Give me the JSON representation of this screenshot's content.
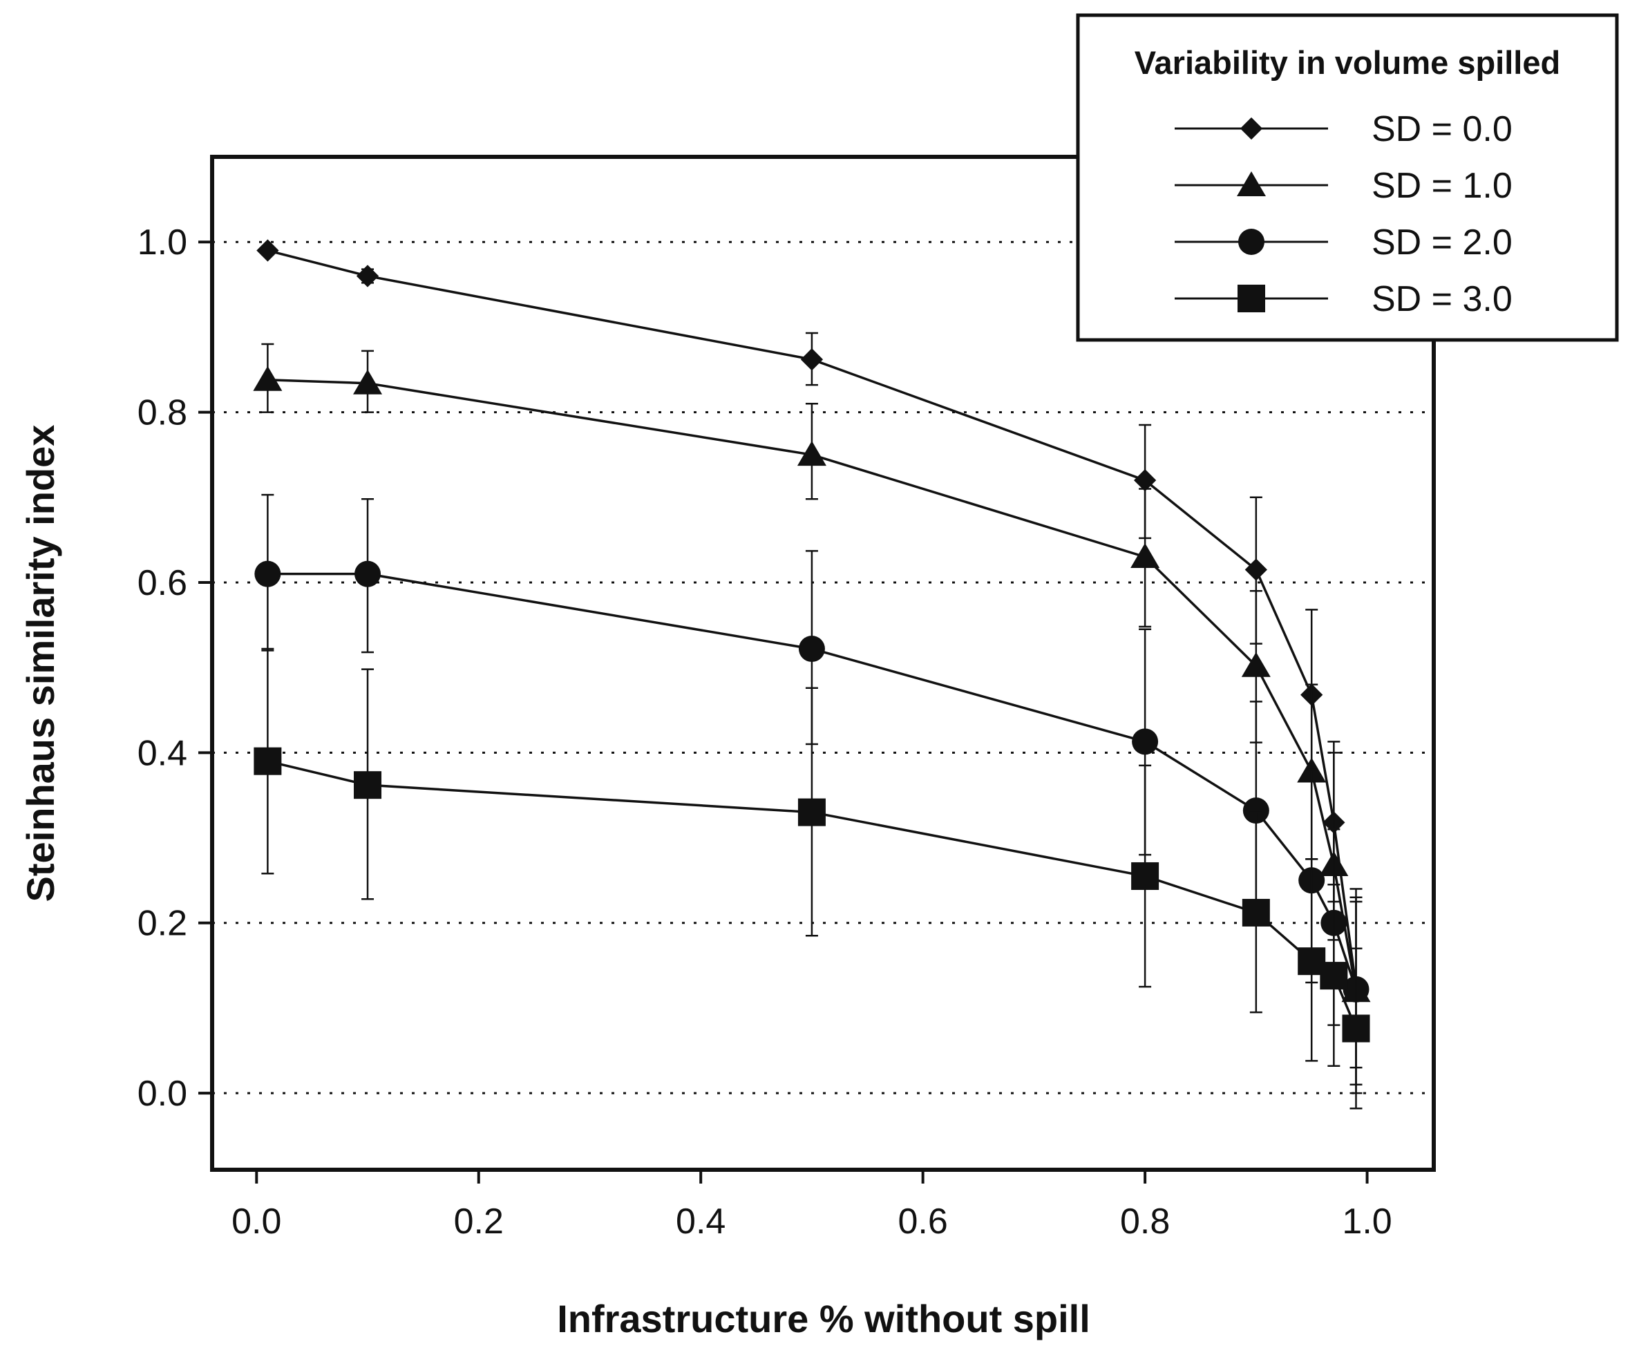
{
  "chart_data": {
    "type": "line",
    "title": "",
    "xlabel": "Infrastructure % without spill",
    "ylabel": "Steinhaus similarity index",
    "xlim": [
      -0.04,
      1.06
    ],
    "ylim": [
      -0.09,
      1.1
    ],
    "xticks": [
      "0.0",
      "0.2",
      "0.4",
      "0.6",
      "0.8",
      "1.0"
    ],
    "yticks": [
      "0.0",
      "0.2",
      "0.4",
      "0.6",
      "0.8",
      "1.0"
    ],
    "grid": "horizontal dotted",
    "legend": {
      "title": "Variability in volume spilled",
      "position": "top-right"
    },
    "x": [
      0.01,
      0.1,
      0.5,
      0.8,
      0.9,
      0.95,
      0.97,
      0.99
    ],
    "series": [
      {
        "name": "SD = 0.0",
        "marker": "diamond",
        "values": [
          0.99,
          0.96,
          0.862,
          0.72,
          0.615,
          0.468,
          0.318,
          0.125
        ],
        "lower": [
          0.985,
          0.952,
          0.832,
          0.652,
          0.528,
          0.37,
          0.225,
          0.03
        ],
        "upper": [
          0.995,
          0.968,
          0.893,
          0.785,
          0.7,
          0.568,
          0.413,
          0.225
        ]
      },
      {
        "name": "SD = 1.0",
        "marker": "triangle",
        "values": [
          0.838,
          0.834,
          0.75,
          0.63,
          0.502,
          0.378,
          0.268,
          0.12
        ],
        "lower": [
          0.8,
          0.8,
          0.698,
          0.548,
          0.412,
          0.275,
          0.18,
          0.01
        ],
        "upper": [
          0.88,
          0.872,
          0.81,
          0.71,
          0.59,
          0.48,
          0.4,
          0.23
        ]
      },
      {
        "name": "SD = 2.0",
        "marker": "circle",
        "values": [
          0.61,
          0.61,
          0.522,
          0.413,
          0.332,
          0.25,
          0.2,
          0.122
        ],
        "lower": [
          0.52,
          0.518,
          0.41,
          0.28,
          0.21,
          0.13,
          0.08,
          0.0
        ],
        "upper": [
          0.703,
          0.698,
          0.637,
          0.545,
          0.46,
          0.38,
          0.31,
          0.24
        ]
      },
      {
        "name": "SD = 3.0",
        "marker": "square",
        "values": [
          0.39,
          0.362,
          0.33,
          0.255,
          0.212,
          0.155,
          0.138,
          0.076
        ],
        "lower": [
          0.258,
          0.228,
          0.185,
          0.125,
          0.095,
          0.038,
          0.032,
          -0.018
        ],
        "upper": [
          0.522,
          0.498,
          0.476,
          0.385,
          0.33,
          0.275,
          0.245,
          0.17
        ]
      }
    ]
  }
}
